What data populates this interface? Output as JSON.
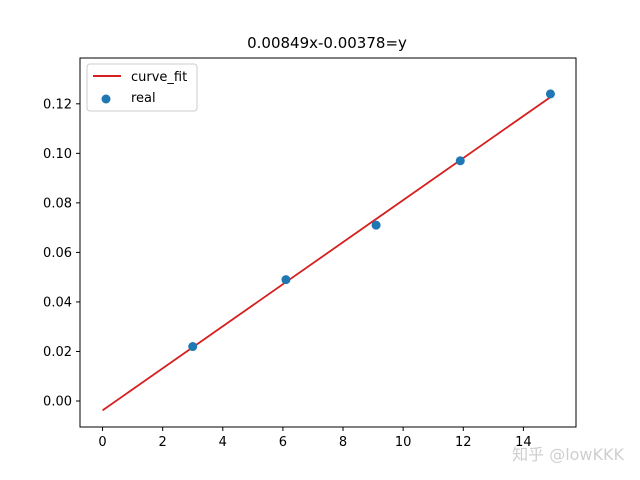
{
  "chart_data": {
    "type": "scatter",
    "title": "0.00849x-0.00378=y",
    "xlabel": "",
    "ylabel": "",
    "xlim": [
      -0.75,
      15.75
    ],
    "ylim": [
      -0.0105,
      0.1385
    ],
    "x_ticks": [
      0,
      2,
      4,
      6,
      8,
      10,
      12,
      14
    ],
    "x_tick_labels": [
      "0",
      "2",
      "4",
      "6",
      "8",
      "10",
      "12",
      "14"
    ],
    "y_ticks": [
      0.0,
      0.02,
      0.04,
      0.06,
      0.08,
      0.1,
      0.12
    ],
    "y_tick_labels": [
      "0.00",
      "0.02",
      "0.04",
      "0.06",
      "0.08",
      "0.10",
      "0.12"
    ],
    "grid": false,
    "legend_position": "upper-left",
    "series": [
      {
        "name": "curve_fit",
        "kind": "line",
        "color": "#d62020",
        "x": [
          0,
          14.9
        ],
        "y": [
          -0.00378,
          0.12272
        ]
      },
      {
        "name": "real",
        "kind": "scatter",
        "color": "#1f77b4",
        "x": [
          3.0,
          6.1,
          9.1,
          11.9,
          14.9
        ],
        "y": [
          0.022,
          0.049,
          0.071,
          0.097,
          0.124
        ]
      }
    ]
  },
  "watermark": {
    "text": "知乎 @lowKKK"
  }
}
